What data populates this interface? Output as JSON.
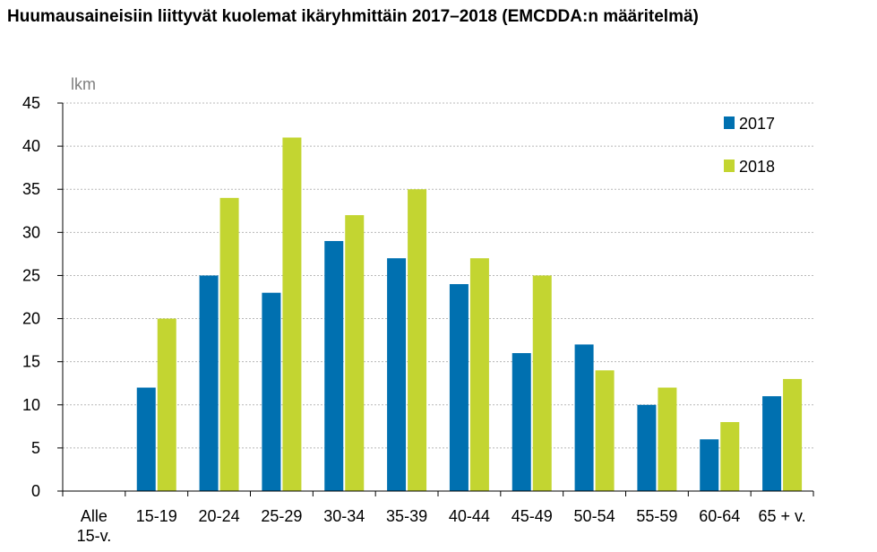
{
  "title": "Huumausaineisiin liittyvät kuolemat ikäryhmittäin 2017–2018 (EMCDDA:n määritelmä)",
  "chart_data": {
    "type": "bar",
    "title": "Huumausaineisiin liittyvät kuolemat ikäryhmittäin 2017–2018 (EMCDDA:n määritelmä)",
    "ylabel": "lkm",
    "xlabel": "",
    "ylim": [
      0,
      45
    ],
    "yticks": [
      0,
      5,
      10,
      15,
      20,
      25,
      30,
      35,
      40,
      45
    ],
    "grid": true,
    "legend_position": "top-right",
    "categories": [
      [
        "Alle",
        "15-v."
      ],
      [
        "15-19"
      ],
      [
        "20-24"
      ],
      [
        "25-29"
      ],
      [
        "30-34"
      ],
      [
        "35-39"
      ],
      [
        "40-44"
      ],
      [
        "45-49"
      ],
      [
        "50-54"
      ],
      [
        "55-59"
      ],
      [
        "60-64"
      ],
      [
        "65 + v."
      ]
    ],
    "series": [
      {
        "name": "2017",
        "color": "#0070b0",
        "values": [
          0,
          12,
          25,
          23,
          29,
          27,
          24,
          16,
          17,
          10,
          6,
          11
        ]
      },
      {
        "name": "2018",
        "color": "#c3d531",
        "values": [
          0,
          20,
          34,
          41,
          32,
          35,
          27,
          25,
          14,
          12,
          8,
          13
        ]
      }
    ]
  }
}
